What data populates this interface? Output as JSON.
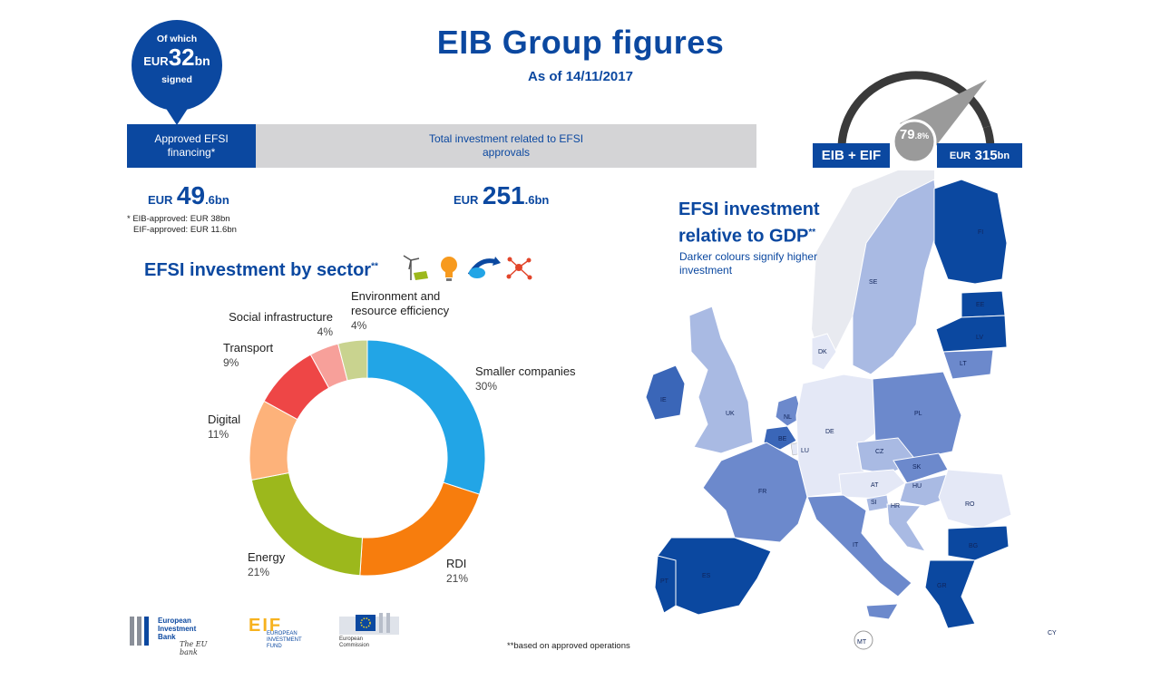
{
  "header": {
    "title": "EIB Group figures",
    "subtitle": "As of 14/11/2017"
  },
  "callout": {
    "line1": "Of which",
    "currency": "EUR",
    "value": "32",
    "unit": "bn",
    "line3": "signed"
  },
  "bars": {
    "approved_label": "Approved EFSI financing*",
    "total_label": "Total investment related to EFSI approvals",
    "approved_amount": {
      "currency": "EUR",
      "value": "49",
      "decimal": ".6bn"
    },
    "total_amount": {
      "currency": "EUR",
      "value": "251",
      "decimal": ".6bn"
    }
  },
  "footnote_approved": {
    "line1": "* EIB-approved: EUR 38bn",
    "line2": "EIF-approved: EUR 11.6bn"
  },
  "gauge": {
    "left_label": "EIB + EIF",
    "right_currency": "EUR",
    "right_value": "315",
    "right_unit": "bn",
    "pct_value": "79",
    "pct_decimal": ".8%",
    "fraction": 0.798
  },
  "sector_heading": {
    "text": "EFSI investment by sector",
    "mark": "**"
  },
  "sector_icons": [
    "wind-turbine-solar-icon",
    "light-bulb-icon",
    "handshake-arrow-icon",
    "network-nodes-icon"
  ],
  "chart_data": {
    "type": "pie",
    "categories": [
      "Smaller companies",
      "RDI",
      "Energy",
      "Digital",
      "Transport",
      "Social infrastructure",
      "Environment and resource efficiency"
    ],
    "values": [
      30,
      21,
      21,
      11,
      9,
      4,
      4
    ],
    "labels": [
      "30%",
      "21%",
      "21%",
      "11%",
      "9%",
      "4%",
      "4%"
    ],
    "colors": [
      "#22a5e6",
      "#f77d0d",
      "#9cb81c",
      "#fdb27a",
      "#ee4646",
      "#f7a09a",
      "#c9d38f"
    ],
    "donut": true
  },
  "pie_labels": {
    "environment": {
      "line1": "Environment and",
      "line2": "resource efficiency",
      "pct": "4%"
    },
    "social": {
      "line1": "Social infrastructure",
      "pct": "4%"
    },
    "transport": {
      "line1": "Transport",
      "pct": "9%"
    },
    "digital": {
      "line1": "Digital",
      "pct": "11%"
    },
    "energy": {
      "line1": "Energy",
      "pct": "21%"
    },
    "rdi": {
      "line1": "RDI",
      "pct": "21%"
    },
    "smaller": {
      "line1": "Smaller companies",
      "pct": "30%"
    }
  },
  "gdp_heading": {
    "line1": "EFSI investment",
    "line2": "relative to GDP",
    "mark": "**"
  },
  "gdp_sub": {
    "line1": "Darker colours signify higher",
    "line2": "investment"
  },
  "map": {
    "shade_colors": {
      "darkest": "#0b48a0",
      "dark": "#3a66b8",
      "medium": "#6c89cc",
      "light": "#a9bae3",
      "lightest": "#e4e8f6"
    },
    "countries": [
      "FI",
      "SE",
      "EE",
      "LV",
      "LT",
      "DK",
      "IE",
      "UK",
      "NL",
      "BE",
      "LU",
      "DE",
      "PL",
      "CZ",
      "SK",
      "FR",
      "AT",
      "HU",
      "SI",
      "HR",
      "RO",
      "BG",
      "IT",
      "PT",
      "ES",
      "GR",
      "MT",
      "CY"
    ]
  },
  "footer": {
    "note": "**based on approved operations",
    "eib_logo": {
      "line1": "European",
      "line2": "Investment",
      "line3": "Bank",
      "tagline": "The EU bank"
    },
    "eif_logo": {
      "mark": "EIF",
      "line1": "EUROPEAN",
      "line2": "INVESTMENT",
      "line3": "FUND"
    },
    "ec_logo": {
      "line1": "European",
      "line2": "Commission"
    }
  }
}
